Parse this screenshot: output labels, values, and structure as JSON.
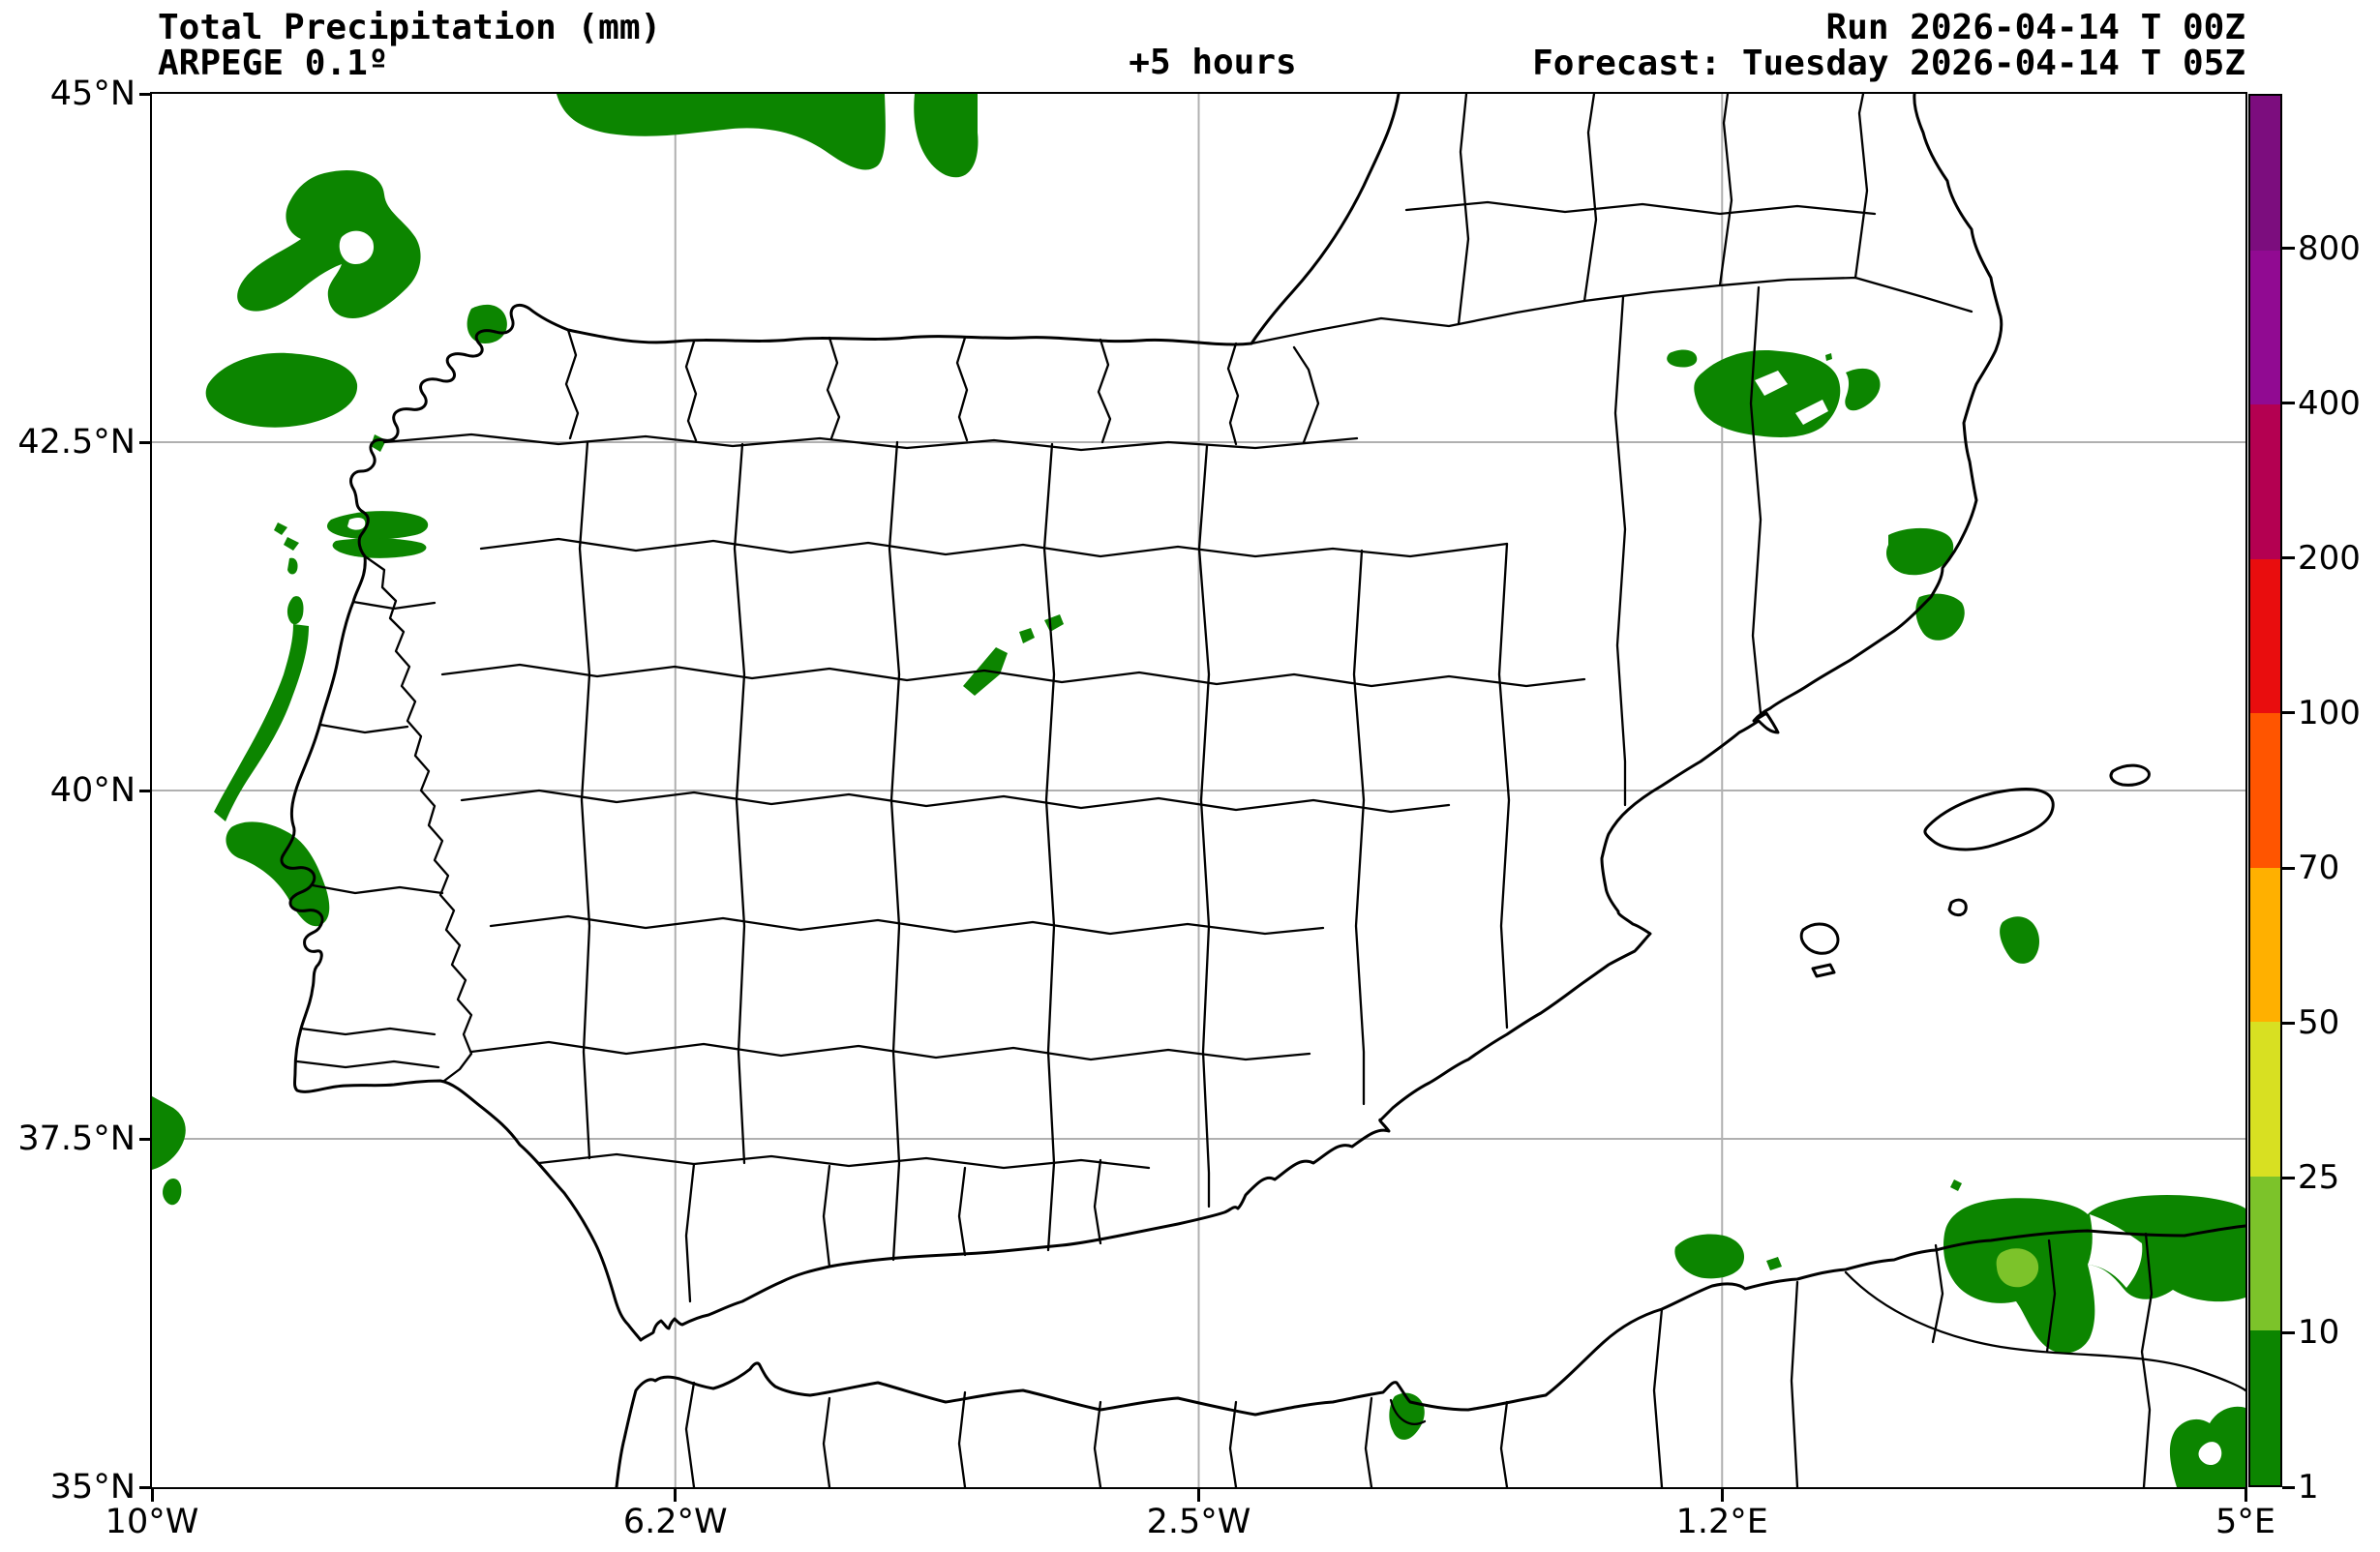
{
  "header": {
    "title_line1": "Total Precipitation (mm)",
    "title_line2": "ARPEGE 0.1º",
    "lead_time": "+5 hours",
    "run_line": "Run 2026-04-14 T 00Z",
    "forecast_line": "Forecast: Tuesday 2026-04-14 T 05Z"
  },
  "axes": {
    "x_ticks": [
      {
        "label": "10°W",
        "pos": 0.0,
        "grid": false
      },
      {
        "label": "6.2°W",
        "pos": 0.25,
        "grid": true
      },
      {
        "label": "2.5°W",
        "pos": 0.5,
        "grid": true
      },
      {
        "label": "1.2°E",
        "pos": 0.75,
        "grid": true
      },
      {
        "label": "5°E",
        "pos": 1.0,
        "grid": false
      }
    ],
    "y_ticks": [
      {
        "label": "45°N",
        "pos": 0.0,
        "grid": false
      },
      {
        "label": "42.5°N",
        "pos": 0.25,
        "grid": true
      },
      {
        "label": "40°N",
        "pos": 0.5,
        "grid": true
      },
      {
        "label": "37.5°N",
        "pos": 0.75,
        "grid": true
      },
      {
        "label": "35°N",
        "pos": 1.0,
        "grid": false
      }
    ],
    "grid_color": "#b0b0b0"
  },
  "colorbar": {
    "units": "mm",
    "segments_top_to_bottom": [
      {
        "range": ">800",
        "color": "#7c0d7e"
      },
      {
        "range": "400-800",
        "color": "#910a92"
      },
      {
        "range": "200-400",
        "color": "#b40051"
      },
      {
        "range": "100-200",
        "color": "#e90d0e"
      },
      {
        "range": "70-100",
        "color": "#ff5500"
      },
      {
        "range": "50-70",
        "color": "#ffb000"
      },
      {
        "range": "25-50",
        "color": "#d8e022"
      },
      {
        "range": "10-25",
        "color": "#7cc32a"
      },
      {
        "range": "1-10",
        "color": "#0c8500"
      }
    ],
    "ticks": [
      {
        "label": "800",
        "frac_from_top": 0.11111
      },
      {
        "label": "400",
        "frac_from_top": 0.22222
      },
      {
        "label": "200",
        "frac_from_top": 0.33333
      },
      {
        "label": "100",
        "frac_from_top": 0.44444
      },
      {
        "label": "70",
        "frac_from_top": 0.55556
      },
      {
        "label": "50",
        "frac_from_top": 0.66667
      },
      {
        "label": "25",
        "frac_from_top": 0.77778
      },
      {
        "label": "10",
        "frac_from_top": 0.88889
      },
      {
        "label": "1",
        "frac_from_top": 1.0
      }
    ]
  },
  "map_data": {
    "type": "precipitation_contour_map",
    "parameter": "Total Precipitation",
    "units": "mm",
    "model": "ARPEGE 0.1°",
    "run": "2026-04-14 00Z",
    "valid": "Tuesday 2026-04-14 05Z",
    "lead_hours": 5,
    "extent": {
      "lon_min": -10,
      "lon_max": 5,
      "lat_min": 35,
      "lat_max": 45
    },
    "contour_levels_mm": [
      1,
      10,
      25,
      50,
      70,
      100,
      200,
      400,
      800
    ],
    "precip_regions": [
      {
        "name": "bay-of-biscay-north-edge",
        "level_mm": "1-10"
      },
      {
        "name": "galicia-interior",
        "level_mm": "1-10"
      },
      {
        "name": "rias-baixas-coast",
        "level_mm": "1-10"
      },
      {
        "name": "porto-douro-patches",
        "level_mm": "1-10"
      },
      {
        "name": "portugal-west-coast-strip",
        "level_mm": "1-10"
      },
      {
        "name": "lisbon-setubal-coast",
        "level_mm": "1-10"
      },
      {
        "name": "west-edge-37.5N",
        "level_mm": "1-10"
      },
      {
        "name": "soria-central-spain",
        "level_mm": "1-10"
      },
      {
        "name": "pyrenees-huesca",
        "level_mm": "1-10"
      },
      {
        "name": "catalonia-coast",
        "level_mm": "1-10"
      },
      {
        "name": "south-of-mallorca",
        "level_mm": "1-10"
      },
      {
        "name": "melilla-coast",
        "level_mm": "1-10"
      },
      {
        "name": "chefchaouen-rif-west",
        "level_mm": "1-10"
      },
      {
        "name": "rif-atlas-north-africa",
        "level_mm": "1-10"
      },
      {
        "name": "rif-atlas-core",
        "level_mm": "10-25"
      },
      {
        "name": "algeria-bottom-right",
        "level_mm": "1-10"
      }
    ],
    "precip_level_colors": {
      "1-10": "#0c8500",
      "10-25": "#7cc32a"
    }
  }
}
